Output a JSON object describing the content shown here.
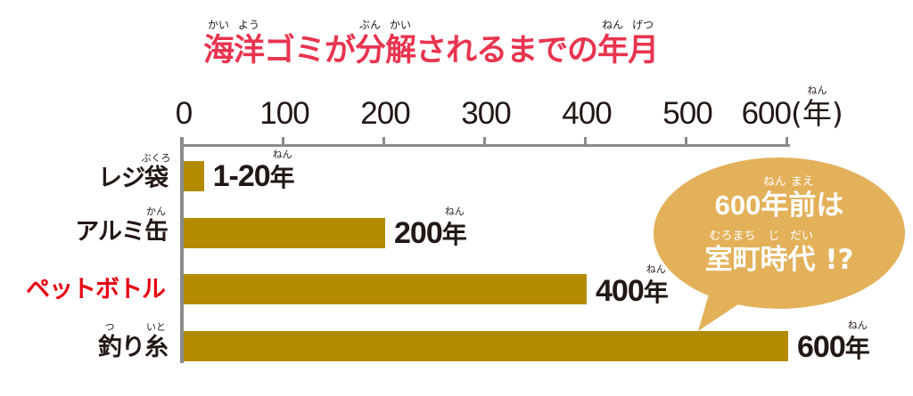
{
  "title": {
    "segments": [
      {
        "text": "海",
        "rt": "かい"
      },
      {
        "text": "洋",
        "rt": "よう"
      },
      {
        "text": "ゴミが"
      },
      {
        "text": "分",
        "rt": "ぶん"
      },
      {
        "text": "解",
        "rt": "かい"
      },
      {
        "text": "されるまでの"
      },
      {
        "text": "年",
        "rt": "ねん"
      },
      {
        "text": "月",
        "rt": "げつ"
      }
    ]
  },
  "axis": {
    "ticks": [
      "0",
      "100",
      "200",
      "300",
      "400",
      "500",
      "600"
    ],
    "unit": {
      "open": "(",
      "text": "年",
      "rt": "ねん",
      "close": ")"
    }
  },
  "items": [
    {
      "segments": [
        {
          "text": "レジ"
        },
        {
          "text": "袋",
          "rt": "ぶくろ"
        }
      ],
      "value_num": "1-20",
      "value_unit": "年",
      "value_rt": "ねん",
      "highlight": false
    },
    {
      "segments": [
        {
          "text": "アルミ"
        },
        {
          "text": "缶",
          "rt": "かん"
        }
      ],
      "value_num": "200",
      "value_unit": "年",
      "value_rt": "ねん",
      "highlight": false
    },
    {
      "segments": [
        {
          "text": "ペットボトル"
        }
      ],
      "value_num": "400",
      "value_unit": "年",
      "value_rt": "ねん",
      "highlight": true
    },
    {
      "segments": [
        {
          "text": "釣",
          "rt": "つ"
        },
        {
          "text": "り"
        },
        {
          "text": "糸",
          "rt": "いと"
        }
      ],
      "value_num": "600",
      "value_unit": "年",
      "value_rt": "ねん",
      "highlight": false
    }
  ],
  "callout": {
    "line1": [
      {
        "text": "600",
        "num": true
      },
      {
        "text": "年",
        "rt": "ねん"
      },
      {
        "text": "前",
        "rt": "まえ"
      },
      {
        "text": "は"
      }
    ],
    "line2": [
      {
        "text": "室町",
        "rt": "むろまち"
      },
      {
        "text": "時",
        "rt": "じ"
      },
      {
        "text": "代",
        "rt": "だい"
      },
      {
        "text": " !?"
      }
    ]
  },
  "colors": {
    "title": "#e8344f",
    "highlight_label": "#e60012",
    "label": "#231815",
    "bar": "#b38b00",
    "axis": "#8b8b8b",
    "bubble": "#e3b15a",
    "bubble_text": "#ffffff"
  },
  "chart_data": {
    "type": "bar",
    "orientation": "horizontal",
    "title": "海洋ゴミが分解されるまでの年月",
    "categories": [
      "レジ袋",
      "アルミ缶",
      "ペットボトル",
      "釣り糸"
    ],
    "values": [
      20,
      200,
      400,
      600
    ],
    "value_ranges": [
      [
        1,
        20
      ],
      [
        200,
        200
      ],
      [
        400,
        400
      ],
      [
        600,
        600
      ]
    ],
    "value_labels": [
      "1-20年",
      "200年",
      "400年",
      "600年"
    ],
    "xlabel": "(年)",
    "ylabel": "",
    "xlim": [
      0,
      600
    ],
    "xticks": [
      0,
      100,
      200,
      300,
      400,
      500,
      600
    ],
    "axis_position": "top",
    "grid": false,
    "legend": null,
    "highlighted_category": "ペットボトル",
    "annotation": "600年前は室町時代 !?"
  }
}
